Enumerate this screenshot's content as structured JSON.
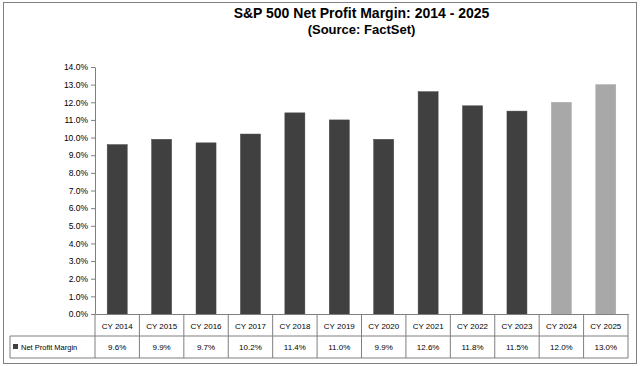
{
  "chart_data": {
    "type": "bar",
    "title": "S&P 500 Net Profit Margin: 2014 - 2025",
    "subtitle": "(Source: FactSet)",
    "categories": [
      "CY 2014",
      "CY 2015",
      "CY 2016",
      "CY 2017",
      "CY 2018",
      "CY 2019",
      "CY 2020",
      "CY 2021",
      "CY 2022",
      "CY 2023",
      "CY 2024",
      "CY 2025"
    ],
    "series": [
      {
        "name": "Net Profit Margin",
        "values": [
          9.6,
          9.9,
          9.7,
          10.2,
          11.4,
          11.0,
          9.9,
          12.6,
          11.8,
          11.5,
          12.0,
          13.0
        ],
        "value_labels": [
          "9.6%",
          "9.9%",
          "9.7%",
          "10.2%",
          "11.4%",
          "11.0%",
          "9.9%",
          "12.6%",
          "11.8%",
          "11.5%",
          "12.0%",
          "13.0%"
        ]
      }
    ],
    "colors": [
      "#404040",
      "#404040",
      "#404040",
      "#404040",
      "#404040",
      "#404040",
      "#404040",
      "#404040",
      "#404040",
      "#404040",
      "#a8a8a8",
      "#a8a8a8"
    ],
    "ylim": [
      0,
      14
    ],
    "yticks": [
      {
        "value": 0,
        "label": "0.0%"
      },
      {
        "value": 1,
        "label": "1.0%"
      },
      {
        "value": 2,
        "label": "2.0%"
      },
      {
        "value": 3,
        "label": "3.0%"
      },
      {
        "value": 4,
        "label": "4.0%"
      },
      {
        "value": 5,
        "label": "5.0%"
      },
      {
        "value": 6,
        "label": "6.0%"
      },
      {
        "value": 7,
        "label": "7.0%"
      },
      {
        "value": 8,
        "label": "8.0%"
      },
      {
        "value": 9,
        "label": "9.0%"
      },
      {
        "value": 10,
        "label": "10.0%"
      },
      {
        "value": 11,
        "label": "11.0%"
      },
      {
        "value": 12,
        "label": "12.0%"
      },
      {
        "value": 13,
        "label": "13.0%"
      },
      {
        "value": 14,
        "label": "14.0%"
      }
    ],
    "grid": false,
    "data_labels": true
  }
}
